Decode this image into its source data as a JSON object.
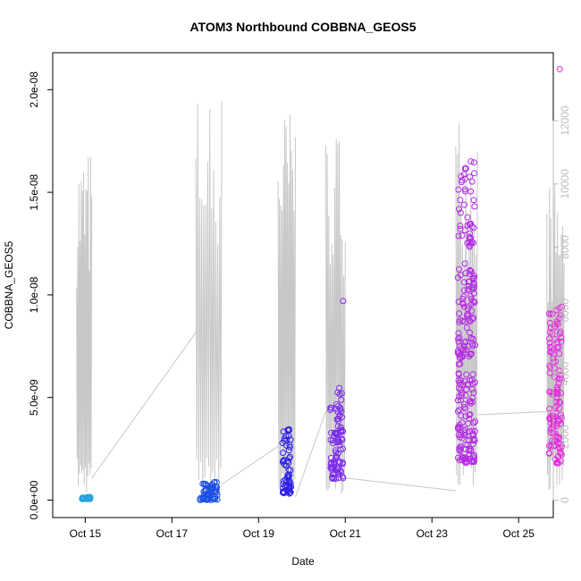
{
  "chart_data": {
    "type": "scatter",
    "title": "ATOM3 Northbound COBBNA_GEOS5",
    "xlabel": "Date",
    "ylabel": "COBBNA_GEOS5",
    "x_ticks": [
      {
        "label": "Oct 15",
        "day": 14.8
      },
      {
        "label": "Oct 17",
        "day": 16.8
      },
      {
        "label": "Oct 19",
        "day": 18.8
      },
      {
        "label": "Oct 21",
        "day": 20.8
      },
      {
        "label": "Oct 23",
        "day": 22.8
      },
      {
        "label": "Oct 25",
        "day": 24.8
      }
    ],
    "xlim": [
      14.05,
      25.6
    ],
    "y_ticks": [
      {
        "label": "0.0e+00",
        "value": 0
      },
      {
        "label": "5.0e-09",
        "value": 5e-09
      },
      {
        "label": "1.0e-08",
        "value": 1e-08
      },
      {
        "label": "1.5e-08",
        "value": 1.5e-08
      },
      {
        "label": "2.0e-08",
        "value": 2e-08
      }
    ],
    "ylim": [
      -8.5e-10,
      2.18e-08
    ],
    "y2_ticks": [
      {
        "label": "0",
        "value": 0
      },
      {
        "label": "2000",
        "value": 2000
      },
      {
        "label": "4000",
        "value": 4000
      },
      {
        "label": "6000",
        "value": 6000
      },
      {
        "label": "8000",
        "value": 8000
      },
      {
        "label": "10000",
        "value": 10000
      },
      {
        "label": "12000",
        "value": 12000
      }
    ],
    "y2lim": [
      -550,
      14150
    ],
    "colors": {
      "series1": "#29a3e0",
      "series2": "#1a4fe0",
      "series3": "#2d1ee6",
      "series4": "#7b2ce8",
      "series5": "#b42ae6",
      "series6": "#e62ae0",
      "altitude_line": "#c8c8c8",
      "axis": "#000000",
      "axis2": "#bdbdbd"
    },
    "series": [
      {
        "color_key": "series1",
        "x_range": [
          14.72,
          14.92
        ],
        "y_range": [
          5e-11,
          1.5e-10
        ],
        "n": 30
      },
      {
        "color_key": "series2",
        "x_range": [
          17.45,
          17.85
        ],
        "y_range": [
          0.0,
          9e-10
        ],
        "n": 60
      },
      {
        "color_key": "series3",
        "x_range": [
          19.35,
          19.55
        ],
        "y_range": [
          3e-10,
          3.6e-09
        ],
        "n": 60
      },
      {
        "color_key": "series4",
        "x_range": [
          20.45,
          20.75
        ],
        "y_range": [
          1e-09,
          5.6e-09
        ],
        "n": 90
      },
      {
        "color_key": "series5",
        "x_range": [
          23.4,
          23.8
        ],
        "y_range": [
          1.8e-09,
          1.65e-08
        ],
        "n": 240
      },
      {
        "color_key": "series6",
        "x_range": [
          25.5,
          25.8
        ],
        "y_range": [
          1.8e-09,
          9.5e-09
        ],
        "n": 130
      }
    ],
    "outlier_points": [
      {
        "x": 20.75,
        "y": 9.7e-09,
        "color_key": "series4"
      },
      {
        "x": 23.7,
        "y": 1.65e-08,
        "color_key": "series5"
      },
      {
        "x": 25.75,
        "y": 2.1e-08,
        "color_key": "series6"
      }
    ],
    "altitude_segments": [
      {
        "x_range": [
          14.6,
          14.95
        ],
        "peak": 11200
      },
      {
        "x_range": [
          17.35,
          17.95
        ],
        "peak": 13000
      },
      {
        "x_range": [
          19.25,
          19.65
        ],
        "peak": 12500
      },
      {
        "x_range": [
          20.35,
          20.8
        ],
        "peak": 11800
      },
      {
        "x_range": [
          23.35,
          23.85
        ],
        "peak": 12500
      },
      {
        "x_range": [
          25.45,
          25.85
        ],
        "peak": 10200
      }
    ],
    "altitude_links": [
      [
        [
          14.95,
          700
        ],
        [
          17.35,
          5300
        ]
      ],
      [
        [
          17.95,
          500
        ],
        [
          19.25,
          1700
        ]
      ],
      [
        [
          19.65,
          100
        ],
        [
          20.35,
          2800
        ]
      ],
      [
        [
          20.8,
          700
        ],
        [
          23.35,
          300
        ]
      ],
      [
        [
          23.85,
          2700
        ],
        [
          25.45,
          2800
        ]
      ]
    ]
  }
}
